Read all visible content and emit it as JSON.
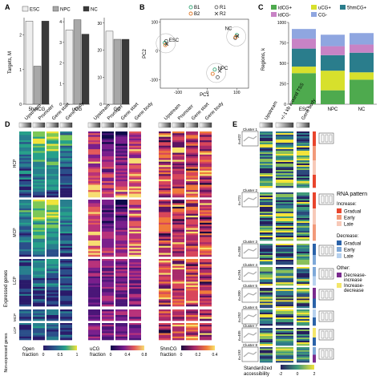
{
  "panel_labels": {
    "a": "A",
    "b": "B",
    "c": "C",
    "d": "D",
    "e": "E"
  },
  "colors": {
    "esc": "#eeeeee",
    "npc": "#a8a8a8",
    "nc": "#3a3a3a",
    "idCGplus": "#4eaa4e",
    "uCGplus": "#d7e02c",
    "fivehmCGplus": "#2a7d8c",
    "idCGminus": "#c883c5",
    "CGminus": "#8fa6e0",
    "gradual": "#e8452d",
    "early": "#f29a7a",
    "late": "#f7c9b8",
    "dec_gradual": "#2b62a8",
    "dec_early": "#7ea8d8",
    "dec_late": "#b7d1ee",
    "dec_inc": "#7a2a8e",
    "inc_dec": "#f4e66a"
  },
  "chart_data": [
    {
      "type": "bar",
      "panel": "A",
      "ylabel": "Targets, M",
      "legend": [
        "ESC",
        "NPC",
        "NC"
      ],
      "legend_position": "top",
      "categories": [
        "5hmCG",
        "uCG",
        "GC"
      ],
      "series": [
        {
          "name": "ESC",
          "values": [
            2.4,
            3.6,
            27
          ]
        },
        {
          "name": "NPC",
          "values": [
            1.1,
            4.1,
            24
          ]
        },
        {
          "name": "NC",
          "values": [
            2.4,
            3.4,
            24
          ]
        }
      ],
      "panels_ylim": [
        [
          0,
          2.5
        ],
        [
          0,
          4.2
        ],
        [
          0,
          32
        ]
      ],
      "panels_yticks": [
        [
          "0",
          "1",
          "2"
        ],
        [
          "0",
          "1",
          "2",
          "3",
          "4"
        ],
        [
          "0",
          "10",
          "20",
          "30"
        ]
      ]
    },
    {
      "type": "scatter",
      "panel": "B",
      "xlabel": "PC1",
      "ylabel": "PC2",
      "legend": [
        "B1",
        "R1",
        "B2",
        "R2"
      ],
      "xticks": [
        "-100",
        "0",
        "100"
      ],
      "yticks": [
        "-100",
        "0",
        "100"
      ],
      "xlim": [
        -160,
        140
      ],
      "ylim": [
        -130,
        110
      ],
      "groups": [
        {
          "label": "ESC",
          "points": [
            {
              "x": -145,
              "y": 28,
              "m": "B1"
            },
            {
              "x": -140,
              "y": 34,
              "m": "R1"
            },
            {
              "x": -143,
              "y": 20,
              "m": "B2"
            },
            {
              "x": -138,
              "y": 24,
              "m": "R2"
            }
          ]
        },
        {
          "label": "NC",
          "points": [
            {
              "x": 100,
              "y": 55,
              "m": "B1"
            },
            {
              "x": 95,
              "y": 45,
              "m": "R1"
            },
            {
              "x": 96,
              "y": 48,
              "m": "B2"
            },
            {
              "x": 102,
              "y": 52,
              "m": "R2"
            }
          ]
        },
        {
          "label": "NPC",
          "points": [
            {
              "x": 25,
              "y": -65,
              "m": "B1"
            },
            {
              "x": 35,
              "y": -92,
              "m": "R1"
            },
            {
              "x": 18,
              "y": -80,
              "m": "B2"
            },
            {
              "x": 42,
              "y": -70,
              "m": "R2"
            }
          ]
        }
      ]
    },
    {
      "type": "bar",
      "panel": "C",
      "stacked": true,
      "ylabel": "Regions, k",
      "categories": [
        "ESC",
        "NPC",
        "NC"
      ],
      "yticks": [
        "0",
        "250",
        "500",
        "750",
        "1000"
      ],
      "ylim": [
        0,
        1000
      ],
      "legend": [
        "idCG+",
        "uCG+",
        "5hmCG+",
        "idCG-",
        "CG-"
      ],
      "series": [
        {
          "name": "idCG+",
          "values": [
            380,
            170,
            300
          ]
        },
        {
          "name": "uCG+",
          "values": [
            80,
            240,
            90
          ]
        },
        {
          "name": "5hmCG+",
          "values": [
            220,
            190,
            240
          ]
        },
        {
          "name": "idCG-",
          "values": [
            120,
            110,
            100
          ]
        },
        {
          "name": "CG-",
          "values": [
            120,
            140,
            140
          ]
        }
      ]
    }
  ],
  "panel_d": {
    "col_headers": [
      "Upstream",
      "Promoter",
      "Gene start",
      "Gene body"
    ],
    "row_groups": [
      "HCP",
      "MCP",
      "LCP",
      "MCP",
      "LCP"
    ],
    "side_labels": {
      "expressed": "Expressed genes",
      "non_expressed": "Non-expressed genes",
      "hcp": "HCP",
      "mcp": "MCP",
      "lcp": "LCP",
      "mcp2": "MCP",
      "lcp2": "LCP"
    },
    "legends": [
      {
        "title": "Open fraction",
        "ticks": [
          "0",
          "0.5",
          "1"
        ]
      },
      {
        "title": "uCG fraction",
        "ticks": [
          "0",
          "0.4",
          "0.8"
        ]
      },
      {
        "title": "5hmCG fraction",
        "ticks": [
          "0",
          "0.2",
          "0.4"
        ]
      }
    ]
  },
  "panel_e": {
    "col_headers": [
      "Upstream",
      "+/-1 kb around TSS",
      "Gene body"
    ],
    "clusters": [
      {
        "name": "Cluster 1",
        "n": "n=622"
      },
      {
        "name": "Cluster 2",
        "n": "n=721"
      },
      {
        "name": "Cluster 3",
        "n": "n=358"
      },
      {
        "name": "Cluster 4",
        "n": "n=294"
      },
      {
        "name": "Cluster 5",
        "n": "n=300"
      },
      {
        "name": "Cluster 6",
        "n": "n=252"
      },
      {
        "name": "Cluster 7",
        "n": "n=405"
      },
      {
        "name": "Cluster 8",
        "n": "n=193"
      }
    ],
    "rna_legend": {
      "title": "RNA pattern",
      "increase": "Increase:",
      "inc_items": [
        "Gradual",
        "Early",
        "Late"
      ],
      "decrease": "Decrease:",
      "dec_items": [
        "Gradual",
        "Early",
        "Late"
      ],
      "other": "Other:",
      "other_items": [
        "Decrease-increase",
        "Increase-decrease"
      ]
    },
    "colorbar": {
      "title": "Standardized accessibility",
      "ticks": [
        "-2",
        "0",
        "2"
      ]
    }
  }
}
